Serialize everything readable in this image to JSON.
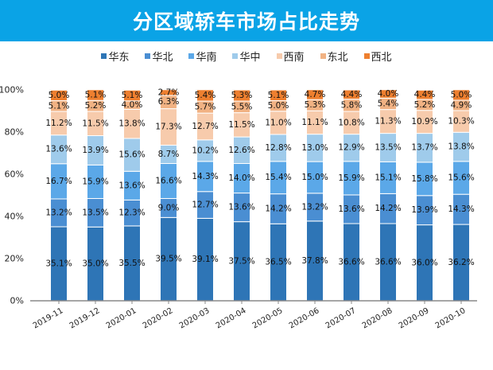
{
  "chart_data": {
    "type": "bar",
    "stacked": true,
    "title": "分区域轿车市场占比走势",
    "categories": [
      "2019-11",
      "2019-12",
      "2020-01",
      "2020-02",
      "2020-03",
      "2020-04",
      "2020-05",
      "2020-06",
      "2020-07",
      "2020-08",
      "2020-09",
      "2020-10"
    ],
    "series": [
      {
        "name": "华东",
        "color": "#2e75b6",
        "values": [
          35.1,
          35.0,
          35.5,
          39.5,
          39.1,
          37.5,
          36.5,
          37.8,
          36.6,
          36.6,
          36.0,
          36.2
        ]
      },
      {
        "name": "华北",
        "color": "#4a8ed2",
        "values": [
          13.2,
          13.5,
          12.3,
          9.0,
          12.7,
          13.6,
          14.2,
          13.2,
          13.6,
          14.2,
          13.9,
          14.3
        ]
      },
      {
        "name": "华南",
        "color": "#5ba8e8",
        "values": [
          16.7,
          15.9,
          13.6,
          16.6,
          14.3,
          14.0,
          15.4,
          15.0,
          15.9,
          15.1,
          15.8,
          15.6
        ]
      },
      {
        "name": "华中",
        "color": "#9fcbeb",
        "values": [
          13.6,
          13.9,
          15.6,
          8.7,
          10.2,
          12.6,
          12.8,
          13.0,
          12.9,
          13.5,
          13.7,
          13.8
        ]
      },
      {
        "name": "西南",
        "color": "#f7cbac",
        "values": [
          11.2,
          11.5,
          13.8,
          17.3,
          12.7,
          11.5,
          11.0,
          11.1,
          10.8,
          11.3,
          10.9,
          10.3
        ]
      },
      {
        "name": "东北",
        "color": "#f1b283",
        "values": [
          5.1,
          5.2,
          4.0,
          6.3,
          5.7,
          5.5,
          5.0,
          5.3,
          5.8,
          5.4,
          5.2,
          4.9
        ]
      },
      {
        "name": "西北",
        "color": "#ee7f2f",
        "values": [
          5.0,
          5.1,
          5.1,
          2.7,
          5.4,
          5.3,
          5.1,
          4.7,
          4.4,
          4.0,
          4.4,
          5.0
        ]
      }
    ],
    "ylim": [
      0,
      100
    ],
    "yticks": [
      "0%",
      "20%",
      "40%",
      "60%",
      "80%",
      "100%"
    ],
    "legend": "top",
    "grid": false,
    "header_color": "#0aa3e6"
  }
}
